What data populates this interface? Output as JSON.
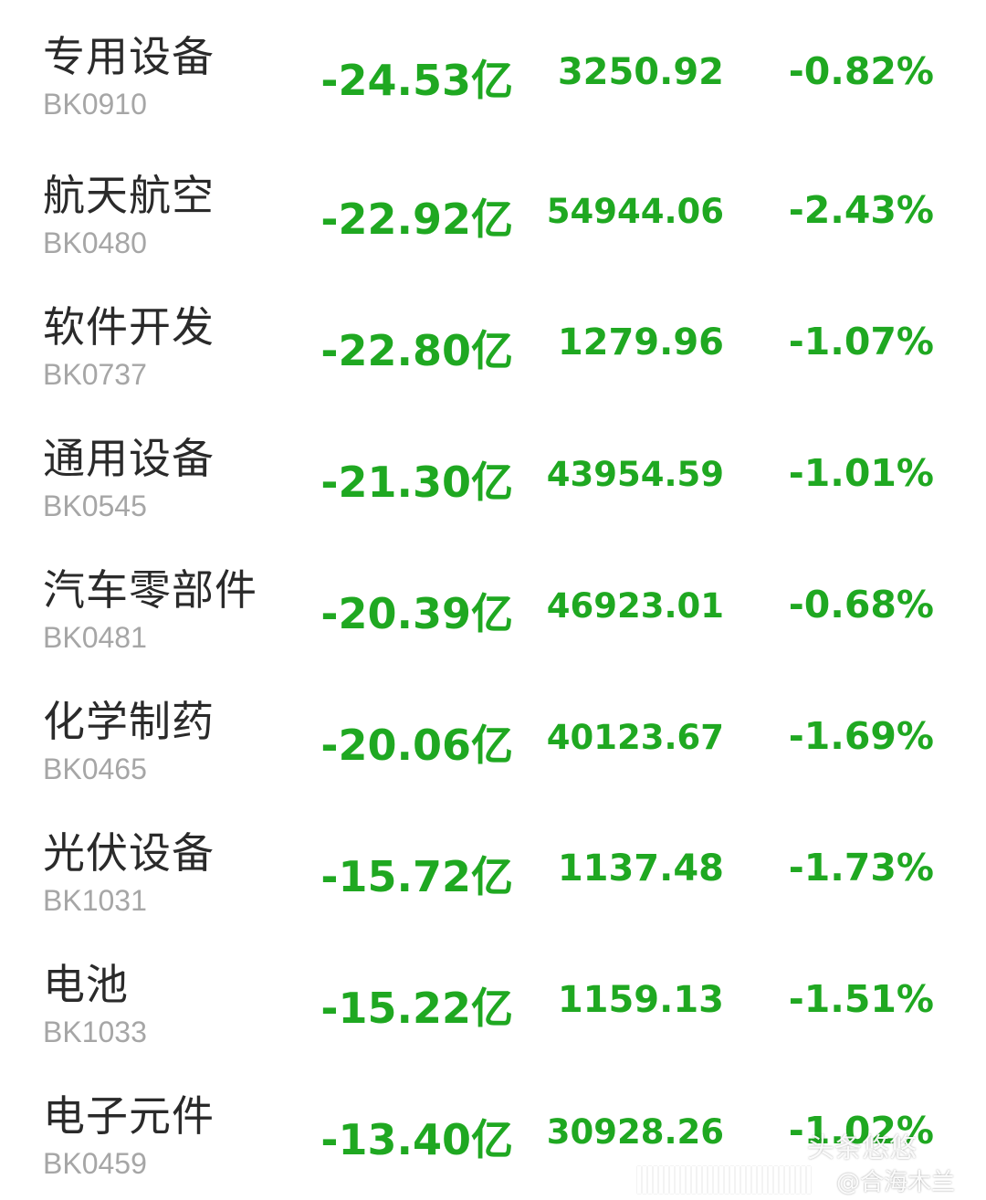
{
  "colors": {
    "down_green": "#1fa821",
    "name_text": "#2a2a2a",
    "code_text": "#a6a6a6"
  },
  "rows": [
    {
      "name": "专用设备",
      "code": "BK0910",
      "flow": "-24.53亿",
      "value": "3250.92",
      "pct": "-0.82%"
    },
    {
      "name": "航天航空",
      "code": "BK0480",
      "flow": "-22.92亿",
      "value": "54944.06",
      "pct": "-2.43%"
    },
    {
      "name": "软件开发",
      "code": "BK0737",
      "flow": "-22.80亿",
      "value": "1279.96",
      "pct": "-1.07%"
    },
    {
      "name": "通用设备",
      "code": "BK0545",
      "flow": "-21.30亿",
      "value": "43954.59",
      "pct": "-1.01%"
    },
    {
      "name": "汽车零部件",
      "code": "BK0481",
      "flow": "-20.39亿",
      "value": "46923.01",
      "pct": "-0.68%"
    },
    {
      "name": "化学制药",
      "code": "BK0465",
      "flow": "-20.06亿",
      "value": "40123.67",
      "pct": "-1.69%"
    },
    {
      "name": "光伏设备",
      "code": "BK1031",
      "flow": "-15.72亿",
      "value": "1137.48",
      "pct": "-1.73%"
    },
    {
      "name": "电池",
      "code": "BK1033",
      "flow": "-15.22亿",
      "value": "1159.13",
      "pct": "-1.51%"
    },
    {
      "name": "电子元件",
      "code": "BK0459",
      "flow": "-13.40亿",
      "value": "30928.26",
      "pct": "-1.02%"
    }
  ],
  "watermark": {
    "line1": "头条悠悠",
    "line2": "@合海木兰",
    "icon": "weibo-icon"
  }
}
